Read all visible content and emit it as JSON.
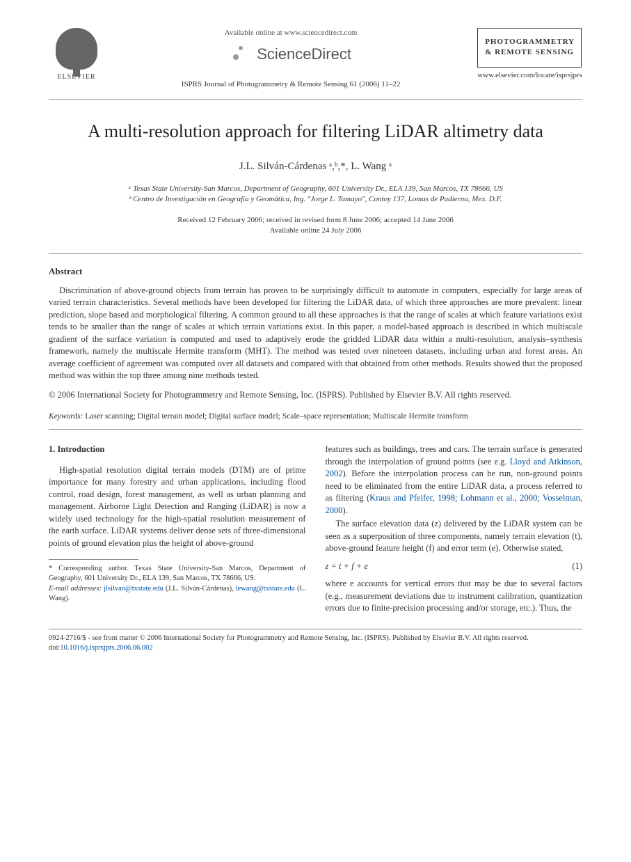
{
  "header": {
    "available_online": "Available online at www.sciencedirect.com",
    "sd_brand": "ScienceDirect",
    "elsevier_label": "ELSEVIER",
    "journal_citation": "ISPRS Journal of Photogrammetry & Remote Sensing 61 (2006) 11–22",
    "journal_box_line1": "PHOTOGRAMMETRY",
    "journal_box_line2": "& REMOTE SENSING",
    "journal_url": "www.elsevier.com/locate/isprsjprs"
  },
  "title": "A multi-resolution approach for filtering LiDAR altimetry data",
  "authors": "J.L. Silván-Cárdenas ᵃ,ᵇ,*, L. Wang ᵃ",
  "affiliations": {
    "a": "ᵃ Texas State University-San Marcos, Department of Geography, 601 University Dr., ELA 139, San Marcos, TX 78666, US",
    "b": "ᵇ Centro de Investigación en Geografía y Geomática, Ing. \"Jorge L. Tamayo\", Contoy 137, Lomas de Padierna, Mex. D.F."
  },
  "dates": {
    "line1": "Received 12 February 2006; received in revised form 8 June 2006; accepted 14 June 2006",
    "line2": "Available online 24 July 2006"
  },
  "abstract": {
    "heading": "Abstract",
    "body": "Discrimination of above-ground objects from terrain has proven to be surprisingly difficult to automate in computers, especially for large areas of varied terrain characteristics. Several methods have been developed for filtering the LiDAR data, of which three approaches are more prevalent: linear prediction, slope based and morphological filtering. A common ground to all these approaches is that the range of scales at which feature variations exist tends to be smaller than the range of scales at which terrain variations exist. In this paper, a model-based approach is described in which multiscale gradient of the surface variation is computed and used to adaptively erode the gridded LiDAR data within a multi-resolution, analysis–synthesis framework, namely the multiscale Hermite transform (MHT). The method was tested over nineteen datasets, including urban and forest areas. An average coefficient of agreement was computed over all datasets and compared with that obtained from other methods. Results showed that the proposed method was within the top three among nine methods tested.",
    "copyright": "© 2006 International Society for Photogrammetry and Remote Sensing, Inc. (ISPRS). Published by Elsevier B.V. All rights reserved."
  },
  "keywords": {
    "label": "Keywords:",
    "list": "Laser scanning; Digital terrain model; Digital surface model; Scale–space representation; Multiscale Hermite transform"
  },
  "intro": {
    "heading": "1. Introduction",
    "left_p1": "High-spatial resolution digital terrain models (DTM) are of prime importance for many forestry and urban applications, including flood control, road design, forest management, as well as urban planning and management. Airborne Light Detection and Ranging (LiDAR) is now a widely used technology for the high-spatial resolution measurement of the earth surface. LiDAR systems deliver dense sets of three-dimensional points of ground elevation plus the height of above-ground",
    "right_p1a": "features such as buildings, trees and cars. The terrain surface is generated through the interpolation of ground points (see e.g. ",
    "right_link1": "Lloyd and Atkinson, 2002",
    "right_p1b": "). Before the interpolation process can be run, non-ground points need to be eliminated from the entire LiDAR data, a process referred to as filtering (",
    "right_link2": "Kraus and Pfeifer, 1998; Lohmann et al., 2000; Vosselman, 2000",
    "right_p1c": ").",
    "right_p2": "The surface elevation data (z) delivered by the LiDAR system can be seen as a superposition of three components, namely terrain elevation (t), above-ground feature height (f) and error term (e). Otherwise stated,",
    "equation": "z = t + f + e",
    "eq_num": "(1)",
    "right_p3": "where e accounts for vertical errors that may be due to several factors (e.g., measurement deviations due to instrument calibration, quantization errors due to finite-precision processing and/or storage, etc.). Thus, the"
  },
  "footnote": {
    "corr": "* Corresponding author. Texas State University-San Marcos, Department of Geography, 601 University Dr., ELA 139, San Marcos, TX 78666, US.",
    "email_label": "E-mail addresses:",
    "email1": "jlsilvan@txstate.edu",
    "email1_name": " (J.L. Silván-Cárdenas), ",
    "email2": "lewang@txstate.edu",
    "email2_name": " (L. Wang)."
  },
  "footer": {
    "line1": "0924-2716/$ - see front matter © 2006 International Society for Photogrammetry and Remote Sensing, Inc. (ISPRS). Published by Elsevier B.V. All rights reserved.",
    "doi_label": "doi:",
    "doi": "10.1016/j.isprsjprs.2006.06.002"
  },
  "colors": {
    "link": "#0050a0",
    "text": "#333333",
    "rule": "#888888"
  }
}
